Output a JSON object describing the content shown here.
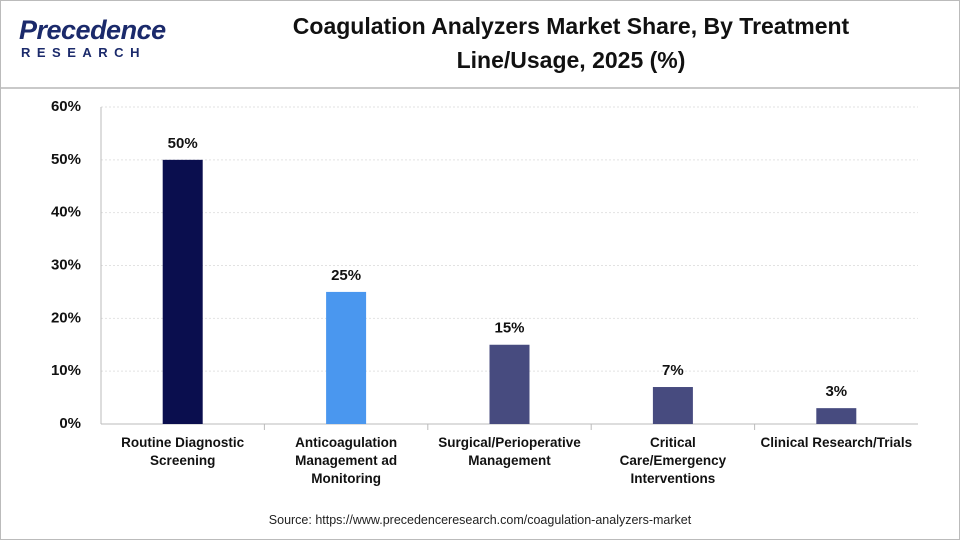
{
  "logo": {
    "name": "Precedence",
    "tagline": "RESEARCH"
  },
  "chart_data": {
    "type": "bar",
    "title": "Coagulation Analyzers Market Share, By Treatment Line/Usage, 2025 (%)",
    "categories": [
      "Routine Diagnostic Screening",
      "Anticoagulation Management ad Monitoring",
      "Surgical/Perioperative Management",
      "Critical Care/Emergency Interventions",
      "Clinical Research/Trials"
    ],
    "values": [
      50,
      25,
      15,
      7,
      3
    ],
    "value_labels": [
      "50%",
      "25%",
      "15%",
      "7%",
      "3%"
    ],
    "colors": [
      "#0a0e4e",
      "#4a97ef",
      "#474b7f",
      "#474b7f",
      "#474b7f"
    ],
    "ylim": [
      0,
      60
    ],
    "yticks": [
      {
        "value": 0,
        "label": "0%"
      },
      {
        "value": 10,
        "label": "10%"
      },
      {
        "value": 20,
        "label": "20%"
      },
      {
        "value": 30,
        "label": "30%"
      },
      {
        "value": 40,
        "label": "40%"
      },
      {
        "value": 50,
        "label": "50%"
      },
      {
        "value": 60,
        "label": "60%"
      }
    ],
    "grid": true,
    "source": "Source: https://www.precedenceresearch.com/coagulation-analyzers-market"
  }
}
